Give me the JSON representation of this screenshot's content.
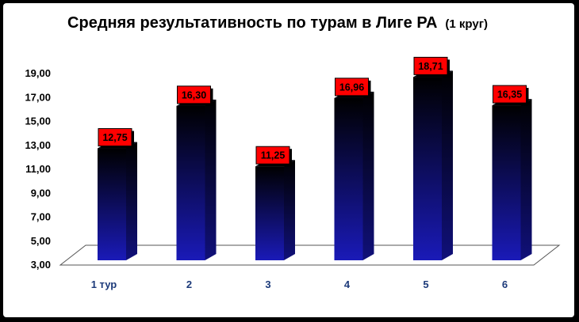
{
  "chart_data": {
    "type": "bar",
    "title": "Средняя результативность по турам в Лиге РА",
    "subtitle": "(1 круг)",
    "categories": [
      "1 тур",
      "2",
      "3",
      "4",
      "5",
      "6"
    ],
    "values": [
      12.75,
      16.3,
      11.25,
      16.96,
      18.71,
      16.35
    ],
    "data_labels": [
      "12,75",
      "16,30",
      "11,25",
      "16,96",
      "18,71",
      "16,35"
    ],
    "yticks": [
      "3,00",
      "5,00",
      "7,00",
      "9,00",
      "11,00",
      "13,00",
      "15,00",
      "17,00",
      "19,00"
    ],
    "ylim": [
      3,
      19
    ],
    "xlabel": "",
    "ylabel": "",
    "grid": false,
    "legend": "none",
    "colors": {
      "bar_top": "#000000",
      "bar_bottom": "#1a1ab8",
      "label_bg": "#ff0000",
      "label_border": "#000000",
      "xtick_text": "#1c3a7a",
      "frame": "#000000"
    }
  }
}
